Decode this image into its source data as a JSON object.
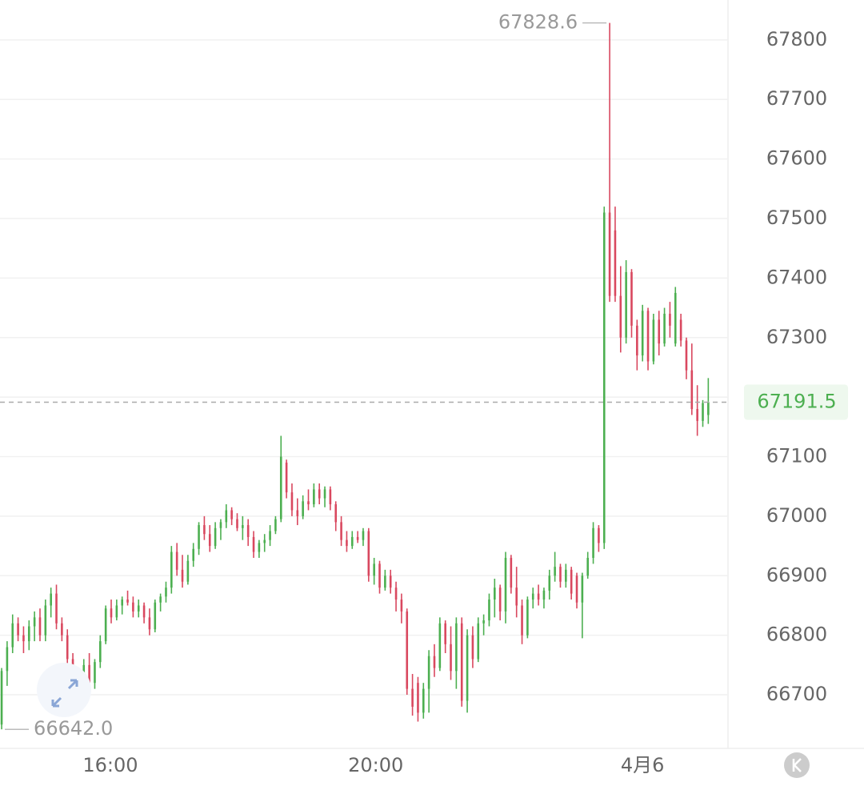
{
  "chart_data": {
    "type": "candlestick",
    "up_color": "#4caf50",
    "down_color": "#d9485f",
    "ylim": [
      66610,
      67867
    ],
    "yticks": [
      66700,
      66800,
      66900,
      67000,
      67100,
      67200,
      67300,
      67400,
      67500,
      67600,
      67700,
      67800
    ],
    "xlim": [
      -0.3,
      132.6
    ],
    "xticks": [
      {
        "value": 19.85,
        "label": "16:00"
      },
      {
        "value": 68.3,
        "label": "20:00"
      },
      {
        "value": 117.0,
        "label": "4月6"
      }
    ],
    "grid": true,
    "ohlc": [
      [
        66650,
        66745,
        66642,
        66740
      ],
      [
        66740,
        66790,
        66715,
        66780
      ],
      [
        66780,
        66835,
        66770,
        66820
      ],
      [
        66820,
        66830,
        66790,
        66800
      ],
      [
        66800,
        66815,
        66770,
        66790
      ],
      [
        66790,
        66825,
        66775,
        66815
      ],
      [
        66815,
        66840,
        66790,
        66830
      ],
      [
        66830,
        66845,
        66790,
        66800
      ],
      [
        66800,
        66860,
        66790,
        66850
      ],
      [
        66850,
        66880,
        66830,
        66870
      ],
      [
        66870,
        66885,
        66810,
        66820
      ],
      [
        66820,
        66830,
        66790,
        66800
      ],
      [
        66800,
        66810,
        66740,
        66760
      ],
      [
        66760,
        66770,
        66690,
        66700
      ],
      [
        66700,
        66740,
        66690,
        66730
      ],
      [
        66730,
        66760,
        66720,
        66750
      ],
      [
        66750,
        66770,
        66710,
        66720
      ],
      [
        66720,
        66760,
        66710,
        66755
      ],
      [
        66755,
        66800,
        66745,
        66790
      ],
      [
        66790,
        66850,
        66785,
        66845
      ],
      [
        66845,
        66860,
        66820,
        66830
      ],
      [
        66830,
        66860,
        66825,
        66850
      ],
      [
        66850,
        66865,
        66835,
        66860
      ],
      [
        66860,
        66875,
        66850,
        66855
      ],
      [
        66855,
        66865,
        66830,
        66840
      ],
      [
        66840,
        66860,
        66830,
        66850
      ],
      [
        66850,
        66855,
        66820,
        66830
      ],
      [
        66830,
        66845,
        66800,
        66810
      ],
      [
        66810,
        66860,
        66805,
        66855
      ],
      [
        66855,
        66870,
        66840,
        66865
      ],
      [
        66865,
        66890,
        66855,
        66880
      ],
      [
        66880,
        66950,
        66870,
        66940
      ],
      [
        66940,
        66955,
        66900,
        66910
      ],
      [
        66910,
        66935,
        66880,
        66890
      ],
      [
        66890,
        66935,
        66885,
        66925
      ],
      [
        66925,
        66955,
        66915,
        66945
      ],
      [
        66945,
        66990,
        66935,
        66985
      ],
      [
        66985,
        67000,
        66960,
        66970
      ],
      [
        66970,
        66985,
        66940,
        66950
      ],
      [
        66950,
        66990,
        66945,
        66980
      ],
      [
        66980,
        66995,
        66960,
        66990
      ],
      [
        66990,
        67020,
        66980,
        67010
      ],
      [
        67010,
        67015,
        66985,
        66995
      ],
      [
        66995,
        67005,
        66975,
        66980
      ],
      [
        66980,
        67000,
        66960,
        66985
      ],
      [
        66985,
        66995,
        66950,
        66965
      ],
      [
        66965,
        66975,
        66930,
        66940
      ],
      [
        66940,
        66960,
        66930,
        66955
      ],
      [
        66955,
        66970,
        66940,
        66960
      ],
      [
        66960,
        66985,
        66950,
        66975
      ],
      [
        66975,
        67000,
        66970,
        66995
      ],
      [
        66995,
        67135,
        66990,
        67100
      ],
      [
        67090,
        67095,
        67030,
        67040
      ],
      [
        67040,
        67055,
        67000,
        67010
      ],
      [
        67010,
        67030,
        66985,
        67000
      ],
      [
        67000,
        67035,
        66995,
        67025
      ],
      [
        67025,
        67045,
        67010,
        67020
      ],
      [
        67020,
        67055,
        67015,
        67045
      ],
      [
        67045,
        67055,
        67020,
        67030
      ],
      [
        67030,
        67050,
        67015,
        67045
      ],
      [
        67045,
        67050,
        67010,
        67020
      ],
      [
        67020,
        67025,
        66975,
        66990
      ],
      [
        66990,
        67000,
        66950,
        66960
      ],
      [
        66960,
        66975,
        66940,
        66950
      ],
      [
        66950,
        66975,
        66945,
        66965
      ],
      [
        66965,
        66975,
        66955,
        66960
      ],
      [
        66960,
        66980,
        66950,
        66975
      ],
      [
        66975,
        66980,
        66890,
        66900
      ],
      [
        66900,
        66930,
        66885,
        66920
      ],
      [
        66920,
        66925,
        66870,
        66880
      ],
      [
        66880,
        66910,
        66875,
        66900
      ],
      [
        66900,
        66910,
        66870,
        66880
      ],
      [
        66880,
        66890,
        66840,
        66860
      ],
      [
        66860,
        66870,
        66820,
        66840
      ],
      [
        66840,
        66845,
        66700,
        66710
      ],
      [
        66710,
        66735,
        66665,
        66680
      ],
      [
        66720,
        66730,
        66655,
        66670
      ],
      [
        66670,
        66720,
        66660,
        66710
      ],
      [
        66710,
        66775,
        66670,
        66765
      ],
      [
        66765,
        66785,
        66730,
        66745
      ],
      [
        66745,
        66830,
        66740,
        66820
      ],
      [
        66820,
        66825,
        66770,
        66785
      ],
      [
        66785,
        66815,
        66725,
        66740
      ],
      [
        66740,
        66830,
        66710,
        66820
      ],
      [
        66820,
        66830,
        66680,
        66690
      ],
      [
        66690,
        66810,
        66670,
        66800
      ],
      [
        66800,
        66815,
        66745,
        66760
      ],
      [
        66760,
        66830,
        66755,
        66820
      ],
      [
        66820,
        66835,
        66800,
        66825
      ],
      [
        66825,
        66870,
        66815,
        66860
      ],
      [
        66860,
        66895,
        66830,
        66880
      ],
      [
        66880,
        66885,
        66825,
        66840
      ],
      [
        66840,
        66940,
        66820,
        66930
      ],
      [
        66930,
        66935,
        66870,
        66880
      ],
      [
        66880,
        66915,
        66830,
        66850
      ],
      [
        66850,
        66860,
        66785,
        66800
      ],
      [
        66800,
        66865,
        66795,
        66860
      ],
      [
        66860,
        66880,
        66845,
        66870
      ],
      [
        66870,
        66885,
        66850,
        66860
      ],
      [
        66860,
        66880,
        66845,
        66875
      ],
      [
        66875,
        66910,
        66860,
        66900
      ],
      [
        66900,
        66940,
        66890,
        66915
      ],
      [
        66915,
        66920,
        66880,
        66890
      ],
      [
        66890,
        66920,
        66880,
        66910
      ],
      [
        66910,
        66915,
        66860,
        66870
      ],
      [
        66900,
        66905,
        66845,
        66855
      ],
      [
        66855,
        66905,
        66795,
        66900
      ],
      [
        66900,
        66940,
        66895,
        66930
      ],
      [
        66930,
        66990,
        66920,
        66980
      ],
      [
        66980,
        66985,
        66940,
        66955
      ],
      [
        66955,
        67520,
        66945,
        67510
      ],
      [
        67510,
        67828.6,
        67360,
        67370
      ],
      [
        67480,
        67520,
        67360,
        67370
      ],
      [
        67370,
        67420,
        67275,
        67300
      ],
      [
        67300,
        67430,
        67290,
        67410
      ],
      [
        67410,
        67415,
        67300,
        67320
      ],
      [
        67320,
        67330,
        67245,
        67270
      ],
      [
        67270,
        67355,
        67260,
        67345
      ],
      [
        67345,
        67350,
        67245,
        67260
      ],
      [
        67260,
        67340,
        67255,
        67330
      ],
      [
        67330,
        67345,
        67270,
        67290
      ],
      [
        67290,
        67350,
        67285,
        67340
      ],
      [
        67340,
        67360,
        67300,
        67320
      ],
      [
        67290,
        67385,
        67285,
        67375
      ],
      [
        67330,
        67340,
        67285,
        67295
      ],
      [
        67295,
        67300,
        67230,
        67245
      ],
      [
        67245,
        67290,
        67170,
        67180
      ],
      [
        67180,
        67220,
        67135,
        67160
      ],
      [
        67160,
        67195,
        67150,
        67190
      ],
      [
        67170,
        67232,
        67155,
        67191.5
      ]
    ],
    "high_annotation": {
      "index": 111,
      "value": 67828.6
    },
    "low_annotation": {
      "index": 0,
      "value": 66642,
      "label": "66642.0"
    },
    "last_price": {
      "value": 67191.5,
      "color": "#4caf50"
    }
  }
}
